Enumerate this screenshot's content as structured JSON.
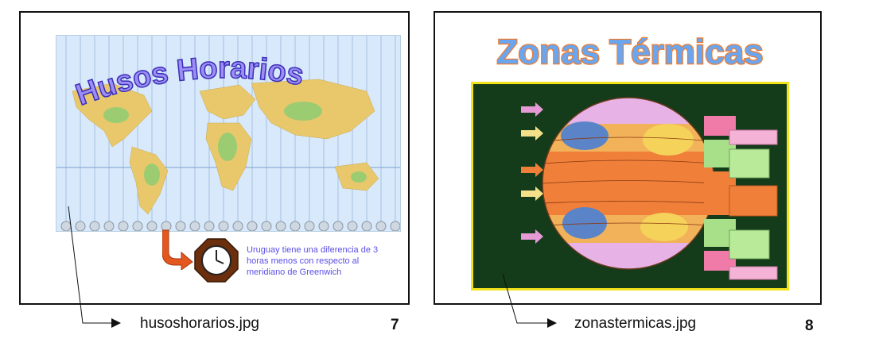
{
  "slides": [
    {
      "title": "Husos Horarios",
      "caption": "Uruguay tiene una diferencia de 3 horas menos con respecto al meridiano de Greenwich",
      "filename": "husoshorarios.jpg",
      "page": "7",
      "colors": {
        "title_fill": "#9d8df5",
        "ocean": "#d7e9fb",
        "land": "#e9c86b",
        "land_green": "#9ccc72",
        "arrow": "#e4581f"
      }
    },
    {
      "title": "Zonas Térmicas",
      "filename": "zonastermicas.jpg",
      "page": "8",
      "colors": {
        "title_fill": "#6aa6f0",
        "title_outline": "#ef7b2c",
        "background": "#143b1a",
        "frame": "#f1e21a"
      }
    }
  ]
}
